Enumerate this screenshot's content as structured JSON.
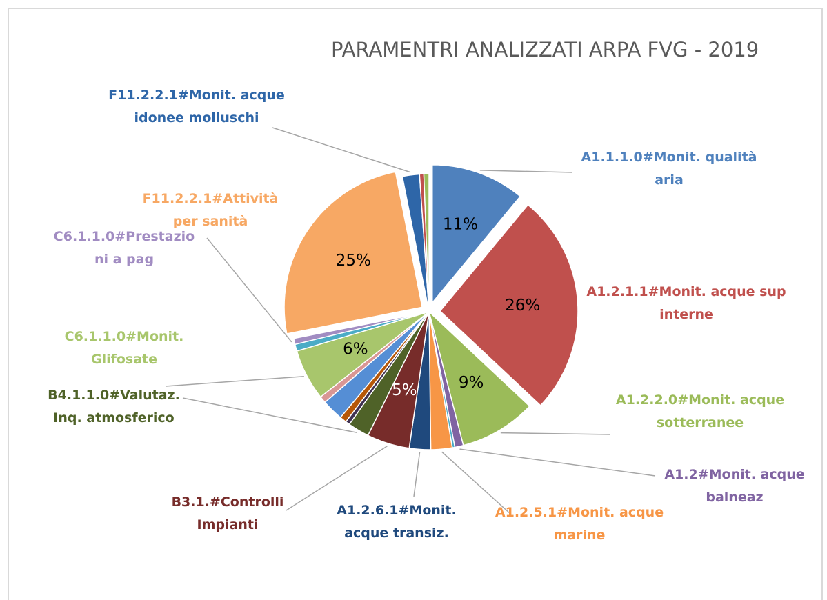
{
  "chart_data": {
    "type": "pie",
    "title": "PARAMENTRI ANALIZZATI ARPA FVG - 2019",
    "categories": [
      "A1.1.1.0#Monit. qualità aria",
      "A1.2.1.1#Monit. acque sup interne",
      "A1.2.2.0#Monit. acque sotterranee",
      "A1.2#Monit. acque balneaz",
      null,
      "A1.2.5.1#Monit. acque marine",
      "A1.2.6.1#Monit. acque transiz.",
      "B3.1.#Controlli Impianti",
      "B4.1.1.0#Valutaz. Inq. atmosferico",
      null,
      null,
      null,
      null,
      "C6.1.1.0#Monit. Glifosate",
      null,
      "C6.1.1.0#Prestazio ni a pag",
      "F11.2.2.1#Attività per sanità",
      "F11.2.2.1#Monit. acque idonee molluschi",
      null,
      null
    ],
    "values": [
      11,
      26,
      9,
      1,
      0.3,
      2.5,
      2.5,
      5,
      2.5,
      0.5,
      0.8,
      2.5,
      0.8,
      6,
      0.8,
      0.7,
      25,
      2,
      0.5,
      0.6
    ],
    "value_labels": [
      "11%",
      "26%",
      "9%",
      null,
      null,
      null,
      null,
      "5%",
      null,
      null,
      null,
      null,
      null,
      "6%",
      null,
      null,
      "25%",
      null,
      null,
      null
    ],
    "colors": [
      "#4f81bd",
      "#c0504d",
      "#9bbb59",
      "#8064a2",
      "#4bacc6",
      "#f79646",
      "#1f497d",
      "#772c2a",
      "#4f6228",
      "#403152",
      "#b65708",
      "#558ed5",
      "#d99694",
      "#a8c66c",
      "#4bacc6",
      "#a18cc2",
      "#f7a864",
      "#2e66a8",
      "#c0504d",
      "#9bbb59"
    ]
  }
}
